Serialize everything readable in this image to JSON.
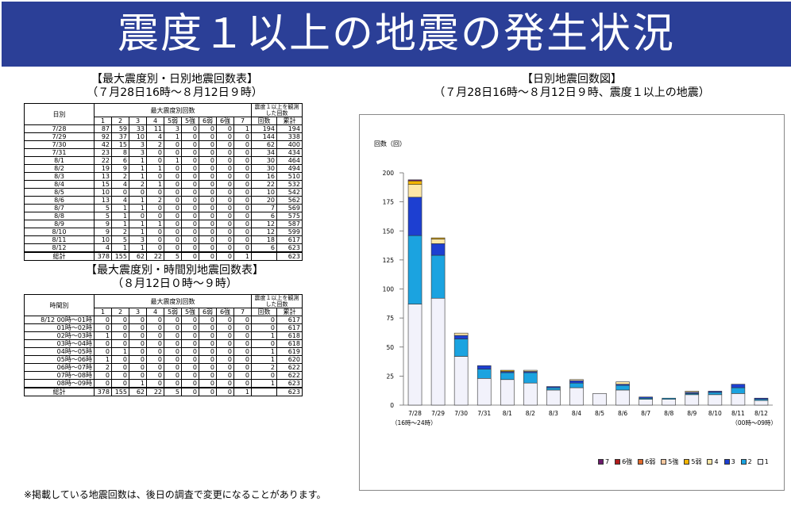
{
  "banner_title": "震度１以上の地震の発生状況",
  "daily_table": {
    "title1": "【最大震度別・日別地震回数表】",
    "title2": "（７月28日16時～８月12日９時）",
    "col_label": "日別",
    "group_label": "最大震度別回数",
    "obs_label": "震度１以上を観測した回数",
    "subheaders": [
      "1",
      "2",
      "3",
      "4",
      "5弱",
      "5強",
      "6弱",
      "6強",
      "7",
      "回数",
      "累計"
    ],
    "rows": [
      [
        "7/28",
        "87",
        "59",
        "33",
        "11",
        "3",
        "0",
        "0",
        "0",
        "1",
        "194",
        "194"
      ],
      [
        "7/29",
        "92",
        "37",
        "10",
        "4",
        "1",
        "0",
        "0",
        "0",
        "0",
        "144",
        "338"
      ],
      [
        "7/30",
        "42",
        "15",
        "3",
        "2",
        "0",
        "0",
        "0",
        "0",
        "0",
        "62",
        "400"
      ],
      [
        "7/31",
        "23",
        "8",
        "3",
        "0",
        "0",
        "0",
        "0",
        "0",
        "0",
        "34",
        "434"
      ],
      [
        "8/1",
        "22",
        "6",
        "1",
        "0",
        "1",
        "0",
        "0",
        "0",
        "0",
        "30",
        "464"
      ],
      [
        "8/2",
        "19",
        "9",
        "1",
        "1",
        "0",
        "0",
        "0",
        "0",
        "0",
        "30",
        "494"
      ],
      [
        "8/3",
        "13",
        "2",
        "1",
        "0",
        "0",
        "0",
        "0",
        "0",
        "0",
        "16",
        "510"
      ],
      [
        "8/4",
        "15",
        "4",
        "2",
        "1",
        "0",
        "0",
        "0",
        "0",
        "0",
        "22",
        "532"
      ],
      [
        "8/5",
        "10",
        "0",
        "0",
        "0",
        "0",
        "0",
        "0",
        "0",
        "0",
        "10",
        "542"
      ],
      [
        "8/6",
        "13",
        "4",
        "1",
        "2",
        "0",
        "0",
        "0",
        "0",
        "0",
        "20",
        "562"
      ],
      [
        "8/7",
        "5",
        "1",
        "1",
        "0",
        "0",
        "0",
        "0",
        "0",
        "0",
        "7",
        "569"
      ],
      [
        "8/8",
        "5",
        "1",
        "0",
        "0",
        "0",
        "0",
        "0",
        "0",
        "0",
        "6",
        "575"
      ],
      [
        "8/9",
        "9",
        "1",
        "1",
        "1",
        "0",
        "0",
        "0",
        "0",
        "0",
        "12",
        "587"
      ],
      [
        "8/10",
        "9",
        "2",
        "1",
        "0",
        "0",
        "0",
        "0",
        "0",
        "0",
        "12",
        "599"
      ],
      [
        "8/11",
        "10",
        "5",
        "3",
        "0",
        "0",
        "0",
        "0",
        "0",
        "0",
        "18",
        "617"
      ],
      [
        "8/12",
        "4",
        "1",
        "1",
        "0",
        "0",
        "0",
        "0",
        "0",
        "0",
        "6",
        "623"
      ]
    ],
    "total": [
      "総計",
      "378",
      "155",
      "62",
      "22",
      "5",
      "0",
      "0",
      "0",
      "1",
      "",
      "623"
    ]
  },
  "hourly_table": {
    "title1": "【最大震度別・時間別地震回数表】",
    "title2": "（８月12日０時～９時）",
    "col_label": "時間別",
    "group_label": "最大震度別回数",
    "obs_label": "震度１以上を観測した回数",
    "subheaders": [
      "1",
      "2",
      "3",
      "4",
      "5弱",
      "5強",
      "6弱",
      "6強",
      "7",
      "回数",
      "累計"
    ],
    "rows": [
      [
        "8/12 00時～01時",
        "0",
        "0",
        "0",
        "0",
        "0",
        "0",
        "0",
        "0",
        "0",
        "0",
        "617"
      ],
      [
        "01時～02時",
        "0",
        "0",
        "0",
        "0",
        "0",
        "0",
        "0",
        "0",
        "0",
        "0",
        "617"
      ],
      [
        "02時～03時",
        "1",
        "0",
        "0",
        "0",
        "0",
        "0",
        "0",
        "0",
        "0",
        "1",
        "618"
      ],
      [
        "03時～04時",
        "0",
        "0",
        "0",
        "0",
        "0",
        "0",
        "0",
        "0",
        "0",
        "0",
        "618"
      ],
      [
        "04時～05時",
        "0",
        "1",
        "0",
        "0",
        "0",
        "0",
        "0",
        "0",
        "0",
        "1",
        "619"
      ],
      [
        "05時～06時",
        "1",
        "0",
        "0",
        "0",
        "0",
        "0",
        "0",
        "0",
        "0",
        "1",
        "620"
      ],
      [
        "06時～07時",
        "2",
        "0",
        "0",
        "0",
        "0",
        "0",
        "0",
        "0",
        "0",
        "2",
        "622"
      ],
      [
        "07時～08時",
        "0",
        "0",
        "0",
        "0",
        "0",
        "0",
        "0",
        "0",
        "0",
        "0",
        "622"
      ],
      [
        "08時～09時",
        "0",
        "0",
        "1",
        "0",
        "0",
        "0",
        "0",
        "0",
        "0",
        "1",
        "623"
      ]
    ],
    "total": [
      "総計",
      "378",
      "155",
      "62",
      "22",
      "5",
      "0",
      "0",
      "0",
      "1",
      "",
      "623"
    ]
  },
  "footnote": "※掲載している地震回数は、後日の調査で変更になることがあります。",
  "chart_title1": "【日別地震回数図】",
  "chart_title2": "（７月28日16時～８月12日９時、震度１以上の地震）",
  "chart_data": {
    "type": "bar",
    "stacked": true,
    "ylabel": "回数（回）",
    "ylim": [
      0,
      200
    ],
    "yticks": [
      0,
      25,
      50,
      75,
      100,
      125,
      150,
      175,
      200
    ],
    "categories": [
      "7/28",
      "7/29",
      "7/30",
      "7/31",
      "8/1",
      "8/2",
      "8/3",
      "8/4",
      "8/5",
      "8/6",
      "8/7",
      "8/8",
      "8/9",
      "8/10",
      "8/11",
      "8/12"
    ],
    "sub_labels": {
      "first": "（16時～24時）",
      "last": "（00時～09時）"
    },
    "series": [
      {
        "name": "1",
        "color": "#f2f2fb",
        "values": [
          87,
          92,
          42,
          23,
          22,
          19,
          13,
          15,
          10,
          13,
          5,
          5,
          9,
          9,
          10,
          4
        ]
      },
      {
        "name": "2",
        "color": "#1ba3e0",
        "values": [
          59,
          37,
          15,
          8,
          6,
          9,
          2,
          4,
          0,
          4,
          1,
          1,
          1,
          2,
          5,
          1
        ]
      },
      {
        "name": "3",
        "color": "#1d3fd1",
        "values": [
          33,
          10,
          3,
          3,
          1,
          1,
          1,
          2,
          0,
          1,
          1,
          0,
          1,
          1,
          3,
          1
        ]
      },
      {
        "name": "4",
        "color": "#fde7a6",
        "values": [
          11,
          4,
          2,
          0,
          0,
          1,
          0,
          1,
          0,
          2,
          0,
          0,
          1,
          0,
          0,
          0
        ]
      },
      {
        "name": "5弱",
        "color": "#f4b400",
        "values": [
          3,
          1,
          0,
          0,
          1,
          0,
          0,
          0,
          0,
          0,
          0,
          0,
          0,
          0,
          0,
          0
        ]
      },
      {
        "name": "5強",
        "color": "#f7c9a0",
        "values": [
          0,
          0,
          0,
          0,
          0,
          0,
          0,
          0,
          0,
          0,
          0,
          0,
          0,
          0,
          0,
          0
        ]
      },
      {
        "name": "6弱",
        "color": "#e26a2c",
        "values": [
          0,
          0,
          0,
          0,
          0,
          0,
          0,
          0,
          0,
          0,
          0,
          0,
          0,
          0,
          0,
          0
        ]
      },
      {
        "name": "6強",
        "color": "#b01c1c",
        "values": [
          0,
          0,
          0,
          0,
          0,
          0,
          0,
          0,
          0,
          0,
          0,
          0,
          0,
          0,
          0,
          0
        ]
      },
      {
        "name": "7",
        "color": "#6b1a6b",
        "values": [
          1,
          0,
          0,
          0,
          0,
          0,
          0,
          0,
          0,
          0,
          0,
          0,
          0,
          0,
          0,
          0
        ]
      }
    ],
    "legend_order": [
      "7",
      "6強",
      "6弱",
      "5強",
      "5弱",
      "4",
      "3",
      "2",
      "1"
    ],
    "legend_position": "bottom-right"
  }
}
